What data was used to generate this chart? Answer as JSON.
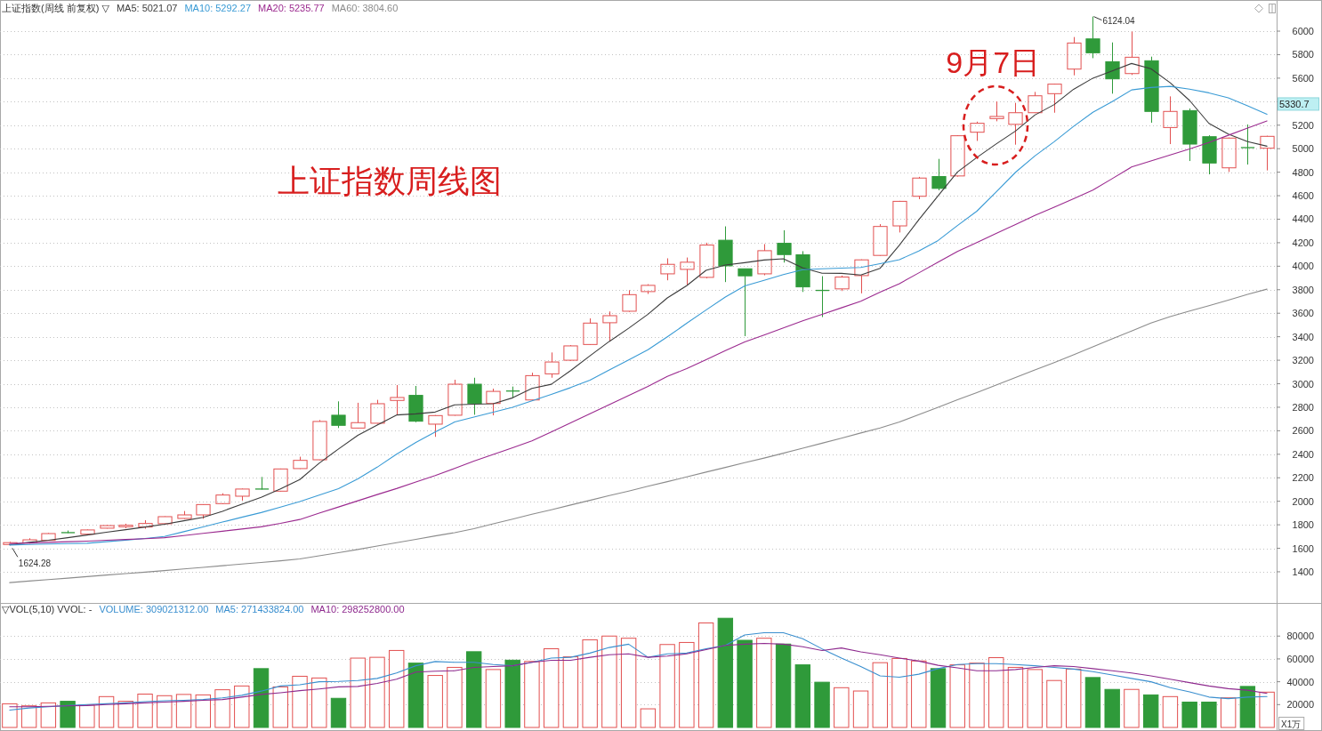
{
  "chart_data": [
    {
      "type": "candlestick",
      "title": "上证指数(周线 前复权) ▽",
      "categories": [
        null,
        null,
        null,
        null,
        null,
        null,
        null,
        null,
        null,
        null,
        null,
        null,
        null,
        null,
        null,
        null,
        null,
        null,
        null,
        null,
        null,
        null,
        null,
        null,
        null,
        null,
        null,
        null,
        null,
        null,
        null,
        null,
        null,
        null,
        null,
        null,
        null,
        null,
        null,
        null,
        null,
        null,
        null,
        null,
        null,
        null,
        null,
        null,
        null,
        null,
        null,
        null,
        null,
        null,
        null,
        null,
        null,
        null,
        null,
        null,
        null,
        null,
        null,
        null,
        null,
        null
      ],
      "ohlc": [
        [
          1632,
          1655,
          1624.28,
          1648
        ],
        [
          1645,
          1685,
          1640,
          1672
        ],
        [
          1667,
          1730,
          1665,
          1725
        ],
        [
          1733,
          1751,
          1729,
          1733
        ],
        [
          1720,
          1760,
          1715,
          1756
        ],
        [
          1771,
          1798,
          1768,
          1793
        ],
        [
          1783,
          1809,
          1771,
          1796
        ],
        [
          1781,
          1839,
          1766,
          1811
        ],
        [
          1809,
          1872,
          1801,
          1869
        ],
        [
          1854,
          1917,
          1850,
          1884
        ],
        [
          1884,
          1975,
          1851,
          1972
        ],
        [
          1980,
          2068,
          1975,
          2053
        ],
        [
          2043,
          2108,
          2005,
          2104
        ],
        [
          2104,
          2207,
          2100,
          2104
        ],
        [
          2086,
          2278,
          2082,
          2275
        ],
        [
          2278,
          2379,
          2275,
          2348
        ],
        [
          2353,
          2691,
          2350,
          2679
        ],
        [
          2732,
          2850,
          2623,
          2646
        ],
        [
          2623,
          2838,
          2620,
          2669
        ],
        [
          2664,
          2863,
          2660,
          2830
        ],
        [
          2858,
          2989,
          2737,
          2883
        ],
        [
          2901,
          2981,
          2673,
          2681
        ],
        [
          2656,
          2733,
          2548,
          2729
        ],
        [
          2732,
          3034,
          2728,
          2996
        ],
        [
          2996,
          3051,
          2736,
          2832
        ],
        [
          2832,
          2958,
          2731,
          2935
        ],
        [
          2938,
          2976,
          2880,
          2938
        ],
        [
          2862,
          3094,
          2858,
          3069
        ],
        [
          3084,
          3266,
          3051,
          3185
        ],
        [
          3200,
          3329,
          3195,
          3322
        ],
        [
          3334,
          3556,
          3330,
          3516
        ],
        [
          3519,
          3615,
          3362,
          3579
        ],
        [
          3617,
          3796,
          3612,
          3758
        ],
        [
          3784,
          3847,
          3764,
          3837
        ],
        [
          3935,
          4067,
          3880,
          4016
        ],
        [
          3973,
          4074,
          3842,
          4034
        ],
        [
          3905,
          4200,
          3897,
          4180
        ],
        [
          4221,
          4339,
          3865,
          4003
        ],
        [
          3978,
          3980,
          3405,
          3918
        ],
        [
          3935,
          4188,
          3923,
          4132
        ],
        [
          4195,
          4306,
          4031,
          4099
        ],
        [
          4097,
          4128,
          3781,
          3824
        ],
        [
          3794,
          3915,
          3567,
          3794
        ],
        [
          3807,
          3920,
          3789,
          3908
        ],
        [
          3920,
          4058,
          3769,
          4054
        ],
        [
          4092,
          4358,
          4088,
          4338
        ],
        [
          4343,
          4556,
          4287,
          4552
        ],
        [
          4595,
          4760,
          4570,
          4750
        ],
        [
          4763,
          4913,
          4646,
          4662
        ],
        [
          4768,
          5115,
          4762,
          5110
        ],
        [
          5140,
          5230,
          5066,
          5216
        ],
        [
          5256,
          5402,
          5233,
          5274
        ],
        [
          5207,
          5390,
          5034,
          5306
        ],
        [
          5306,
          5483,
          5303,
          5450
        ],
        [
          5468,
          5553,
          5306,
          5549
        ],
        [
          5677,
          5950,
          5624,
          5899
        ],
        [
          5934,
          6124.04,
          5770,
          5816
        ],
        [
          5740,
          5904,
          5468,
          5594
        ],
        [
          5639,
          5997,
          5627,
          5778
        ],
        [
          5748,
          5783,
          5221,
          5317
        ],
        [
          5180,
          5445,
          5039,
          5317
        ],
        [
          5324,
          5342,
          4895,
          5039
        ],
        [
          5102,
          5114,
          4782,
          4878
        ],
        [
          4837,
          5095,
          4802,
          5090
        ],
        [
          5009,
          5206,
          4865,
          5009
        ],
        [
          5004,
          5110,
          4815,
          5105
        ]
      ],
      "colors": [
        "#e25050",
        "#e25050",
        "#e25050",
        "#2f9a3a",
        "#e25050",
        "#e25050",
        "#e25050",
        "#e25050",
        "#e25050",
        "#e25050",
        "#e25050",
        "#e25050",
        "#e25050",
        "#2f9a3a",
        "#e25050",
        "#e25050",
        "#e25050",
        "#2f9a3a",
        "#e25050",
        "#e25050",
        "#e25050",
        "#2f9a3a",
        "#e25050",
        "#e25050",
        "#2f9a3a",
        "#e25050",
        "#2f9a3a",
        "#e25050",
        "#e25050",
        "#e25050",
        "#e25050",
        "#e25050",
        "#e25050",
        "#e25050",
        "#e25050",
        "#e25050",
        "#e25050",
        "#2f9a3a",
        "#2f9a3a",
        "#e25050",
        "#2f9a3a",
        "#2f9a3a",
        "#2f9a3a",
        "#e25050",
        "#e25050",
        "#e25050",
        "#e25050",
        "#e25050",
        "#2f9a3a",
        "#e25050",
        "#e25050",
        "#e25050",
        "#e25050",
        "#e25050",
        "#e25050",
        "#e25050",
        "#2f9a3a",
        "#2f9a3a",
        "#e25050",
        "#2f9a3a",
        "#e25050",
        "#2f9a3a",
        "#2f9a3a",
        "#e25050",
        "#2f9a3a",
        "#e25050"
      ],
      "series": [
        {
          "name": "MA5: 5021.07",
          "type": "line",
          "color": "#3c3c3c",
          "values": [
            1630,
            1650,
            1668,
            1690,
            1713,
            1736,
            1758,
            1781,
            1805,
            1834,
            1863,
            1915,
            1975,
            2033,
            2105,
            2185,
            2324,
            2445,
            2561,
            2649,
            2734,
            2744,
            2759,
            2820,
            2826,
            2830,
            2880,
            2960,
            2995,
            3112,
            3237,
            3360,
            3472,
            3591,
            3730,
            3834,
            3965,
            4010,
            4030,
            4053,
            4063,
            3985,
            3940,
            3939,
            3925,
            3982,
            4180,
            4395,
            4600,
            4802,
            4925,
            5040,
            5150,
            5286,
            5375,
            5505,
            5600,
            5662,
            5725,
            5680,
            5560,
            5410,
            5215,
            5125,
            5060,
            5021
          ]
        },
        {
          "name": "MA10: 5292.27",
          "type": "line",
          "color": "#3a9bd5",
          "values": [
            1628,
            1632,
            1636,
            1640,
            1643,
            1656,
            1669,
            1683,
            1701,
            1741,
            1782,
            1823,
            1864,
            1904,
            1950,
            1998,
            2053,
            2107,
            2190,
            2290,
            2400,
            2500,
            2590,
            2674,
            2716,
            2758,
            2800,
            2854,
            2909,
            2967,
            3031,
            3118,
            3202,
            3289,
            3399,
            3514,
            3627,
            3738,
            3832,
            3879,
            3929,
            3971,
            3978,
            3984,
            3989,
            4021,
            4056,
            4129,
            4219,
            4346,
            4468,
            4632,
            4799,
            4938,
            5059,
            5190,
            5310,
            5400,
            5500,
            5521,
            5530,
            5506,
            5475,
            5433,
            5365,
            5292
          ]
        },
        {
          "name": "MA20: 5235.77",
          "type": "line",
          "color": "#9b2a8f",
          "values": [
            1640,
            1645,
            1650,
            1656,
            1661,
            1668,
            1675,
            1681,
            1690,
            1708,
            1727,
            1745,
            1764,
            1783,
            1812,
            1845,
            1899,
            1951,
            2004,
            2057,
            2108,
            2164,
            2219,
            2279,
            2341,
            2398,
            2456,
            2514,
            2589,
            2667,
            2745,
            2823,
            2899,
            2978,
            3063,
            3128,
            3204,
            3282,
            3356,
            3414,
            3475,
            3536,
            3590,
            3646,
            3702,
            3779,
            3852,
            3943,
            4034,
            4125,
            4202,
            4278,
            4355,
            4432,
            4502,
            4574,
            4647,
            4745,
            4844,
            4896,
            4946,
            4997,
            5053,
            5114,
            5175,
            5236
          ]
        },
        {
          "name": "MA60: 3804.60",
          "type": "line",
          "color": "#8c8c8c",
          "values": [
            1308,
            1321,
            1333,
            1346,
            1359,
            1372,
            1384,
            1397,
            1410,
            1424,
            1438,
            1452,
            1466,
            1479,
            1493,
            1509,
            1536,
            1563,
            1590,
            1619,
            1647,
            1676,
            1705,
            1733,
            1767,
            1808,
            1848,
            1889,
            1927,
            1968,
            2008,
            2049,
            2087,
            2128,
            2167,
            2207,
            2248,
            2288,
            2328,
            2367,
            2409,
            2452,
            2494,
            2537,
            2581,
            2624,
            2674,
            2737,
            2800,
            2863,
            2924,
            2988,
            3053,
            3118,
            3180,
            3246,
            3314,
            3383,
            3448,
            3516,
            3571,
            3619,
            3664,
            3712,
            3760,
            3805
          ]
        }
      ],
      "ylim": [
        1150,
        6265
      ],
      "yticks": [
        1400,
        1600,
        1800,
        2000,
        2200,
        2400,
        2600,
        2800,
        3000,
        3200,
        3400,
        3600,
        3800,
        4000,
        4200,
        4400,
        4600,
        4800,
        5000,
        5200,
        {
          "value": 5400,
          "label": null
        },
        5600,
        5800,
        6000
      ],
      "grid": "y",
      "legend": "top left",
      "tick_labels": "y",
      "annotations": [
        "上证指数周线图",
        "9月7日",
        "6124.04",
        "1624.28",
        "5330.7"
      ]
    },
    {
      "type": "bar",
      "title": "▽VOL(5,10)  VVOL: -",
      "categories": [
        null,
        null,
        null,
        null,
        null,
        null,
        null,
        null,
        null,
        null,
        null,
        null,
        null,
        null,
        null,
        null,
        null,
        null,
        null,
        null,
        null,
        null,
        null,
        null,
        null,
        null,
        null,
        null,
        null,
        null,
        null,
        null,
        null,
        null,
        null,
        null,
        null,
        null,
        null,
        null,
        null,
        null,
        null,
        null,
        null,
        null,
        null,
        null,
        null,
        null,
        null,
        null,
        null,
        null,
        null,
        null,
        null,
        null,
        null,
        null,
        null,
        null,
        null,
        null,
        null,
        null
      ],
      "values": [
        20700,
        18900,
        21500,
        22900,
        19600,
        27000,
        22900,
        29200,
        27800,
        28900,
        28500,
        33000,
        36300,
        51500,
        35500,
        44800,
        43300,
        25500,
        60700,
        61400,
        67400,
        56300,
        45500,
        52600,
        66300,
        50700,
        58900,
        57800,
        68900,
        61800,
        76700,
        80000,
        78100,
        16300,
        72600,
        74400,
        91500,
        95600,
        76300,
        78100,
        73000,
        54800,
        39600,
        34800,
        31900,
        56700,
        60400,
        58200,
        51500,
        54800,
        56300,
        61100,
        52600,
        50700,
        41100,
        51100,
        43700,
        33300,
        33300,
        28500,
        27000,
        22200,
        22200,
        25900,
        35900,
        30900
      ],
      "colors": [
        "#e25050",
        "#e25050",
        "#e25050",
        "#2f9a3a",
        "#e25050",
        "#e25050",
        "#e25050",
        "#e25050",
        "#e25050",
        "#e25050",
        "#e25050",
        "#e25050",
        "#e25050",
        "#2f9a3a",
        "#e25050",
        "#e25050",
        "#e25050",
        "#2f9a3a",
        "#e25050",
        "#e25050",
        "#e25050",
        "#2f9a3a",
        "#e25050",
        "#e25050",
        "#2f9a3a",
        "#e25050",
        "#2f9a3a",
        "#e25050",
        "#e25050",
        "#e25050",
        "#e25050",
        "#e25050",
        "#e25050",
        "#e25050",
        "#e25050",
        "#e25050",
        "#e25050",
        "#2f9a3a",
        "#2f9a3a",
        "#e25050",
        "#2f9a3a",
        "#2f9a3a",
        "#2f9a3a",
        "#e25050",
        "#e25050",
        "#e25050",
        "#e25050",
        "#e25050",
        "#2f9a3a",
        "#e25050",
        "#e25050",
        "#e25050",
        "#e25050",
        "#e25050",
        "#e25050",
        "#e25050",
        "#2f9a3a",
        "#2f9a3a",
        "#e25050",
        "#2f9a3a",
        "#e25050",
        "#2f9a3a",
        "#2f9a3a",
        "#e25050",
        "#2f9a3a",
        "#e25050"
      ],
      "series": [
        {
          "name": "MA5: 271433824.00",
          "type": "line",
          "color": "#3a8fcf",
          "values": [
            15200,
            17000,
            18100,
            19200,
            20000,
            20700,
            21500,
            22600,
            23300,
            23700,
            24400,
            25900,
            28100,
            31800,
            36300,
            37400,
            40000,
            40300,
            41100,
            42900,
            47700,
            54000,
            57700,
            57000,
            57000,
            55100,
            54000,
            57000,
            60700,
            61400,
            65100,
            70000,
            72900,
            61400,
            64400,
            65100,
            68800,
            71800,
            81000,
            82900,
            82900,
            77700,
            68800,
            60700,
            53300,
            45100,
            44000,
            46600,
            51500,
            55100,
            55900,
            55900,
            55100,
            54000,
            52600,
            51100,
            48800,
            45900,
            42900,
            40000,
            34800,
            31100,
            26600,
            25200,
            26600,
            27100
          ]
        },
        {
          "name": "MA10: 298252800.00",
          "type": "line",
          "color": "#8e2a8e",
          "values": [
            18100,
            18100,
            18500,
            18900,
            19200,
            20000,
            20700,
            21500,
            22200,
            22900,
            23700,
            24400,
            26600,
            28900,
            30400,
            32200,
            33700,
            35500,
            35900,
            38500,
            42200,
            48500,
            49200,
            49600,
            52600,
            53300,
            54000,
            57000,
            58800,
            58800,
            61400,
            63600,
            64400,
            61400,
            62500,
            64400,
            68100,
            71800,
            72900,
            73600,
            72900,
            70700,
            67400,
            69600,
            66200,
            63600,
            60700,
            58100,
            54400,
            52200,
            49600,
            49600,
            50700,
            52600,
            54000,
            53300,
            51500,
            49600,
            47700,
            45100,
            42200,
            39200,
            36300,
            34000,
            32600,
            29800
          ]
        }
      ],
      "ylim": [
        0,
        109000
      ],
      "yticks": [
        20000,
        40000,
        60000,
        80000
      ],
      "grid": "y",
      "legend": "top left",
      "tick_labels": "y",
      "ylabel": "X1万",
      "annotations": [
        "VOLUME: 309021312.00"
      ]
    }
  ]
}
